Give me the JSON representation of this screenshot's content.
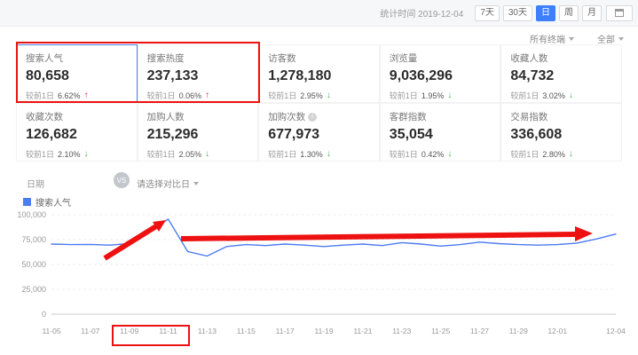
{
  "header": {
    "stat_time_label": "统计时间 2019-12-04",
    "range_buttons": [
      "7天",
      "30天",
      "日",
      "周",
      "月"
    ],
    "active_range": "日"
  },
  "filters": {
    "terminal_label": "所有终端",
    "scope_label": "全部"
  },
  "metrics": [
    {
      "label": "搜索人气",
      "value": "80,658",
      "compare_label": "较前1日",
      "change": "6.62%",
      "direction": "up",
      "selected": true,
      "has_info": false
    },
    {
      "label": "搜索热度",
      "value": "237,133",
      "compare_label": "较前1日",
      "change": "0.06%",
      "direction": "up",
      "selected": false,
      "has_info": false
    },
    {
      "label": "访客数",
      "value": "1,278,180",
      "compare_label": "较前1日",
      "change": "2.95%",
      "direction": "down",
      "selected": false,
      "has_info": false
    },
    {
      "label": "浏览量",
      "value": "9,036,296",
      "compare_label": "较前1日",
      "change": "1.95%",
      "direction": "down",
      "selected": false,
      "has_info": false
    },
    {
      "label": "收藏人数",
      "value": "84,732",
      "compare_label": "较前1日",
      "change": "3.02%",
      "direction": "down",
      "selected": false,
      "has_info": false
    },
    {
      "label": "收藏次数",
      "value": "126,682",
      "compare_label": "较前1日",
      "change": "2.10%",
      "direction": "down",
      "selected": false,
      "has_info": false
    },
    {
      "label": "加购人数",
      "value": "215,296",
      "compare_label": "较前1日",
      "change": "2.05%",
      "direction": "down",
      "selected": false,
      "has_info": false
    },
    {
      "label": "加购次数",
      "value": "677,973",
      "compare_label": "较前1日",
      "change": "1.30%",
      "direction": "down",
      "selected": false,
      "has_info": true
    },
    {
      "label": "客群指数",
      "value": "35,054",
      "compare_label": "较前1日",
      "change": "0.42%",
      "direction": "down",
      "selected": false,
      "has_info": false
    },
    {
      "label": "交易指数",
      "value": "336,608",
      "compare_label": "较前1日",
      "change": "2.80%",
      "direction": "down",
      "selected": false,
      "has_info": false
    }
  ],
  "compare_bar": {
    "date_label": "日期",
    "vs_label": "VS",
    "compare_select_label": "请选择对比日"
  },
  "legend": {
    "series_label": "搜索人气"
  },
  "colors": {
    "accent_blue": "#4b7cf3",
    "up_red": "#f5222d",
    "down_green": "#3cb34f",
    "annotation_red": "#ee1111"
  },
  "chart_data": {
    "type": "line",
    "title": "",
    "xlabel": "",
    "ylabel": "搜索人气",
    "x": [
      "11-05",
      "11-06",
      "11-07",
      "11-08",
      "11-09",
      "11-10",
      "11-11",
      "11-12",
      "11-13",
      "11-14",
      "11-15",
      "11-16",
      "11-17",
      "11-18",
      "11-19",
      "11-20",
      "11-21",
      "11-22",
      "11-23",
      "11-24",
      "11-25",
      "11-26",
      "11-27",
      "11-28",
      "11-29",
      "11-30",
      "12-01",
      "12-02",
      "12-03",
      "12-04"
    ],
    "series": [
      {
        "name": "搜索人气",
        "color": "#4b7cf3",
        "values": [
          70500,
          70000,
          70200,
          69500,
          71000,
          84000,
          95500,
          63000,
          58500,
          68000,
          70000,
          69000,
          70500,
          69500,
          68000,
          69500,
          70500,
          69000,
          72000,
          70500,
          68500,
          70000,
          72500,
          71000,
          70000,
          69500,
          70000,
          71500,
          75650,
          80658
        ]
      }
    ],
    "x_tick_labels": [
      "11-05",
      "11-07",
      "11-09",
      "11-11",
      "11-13",
      "11-15",
      "11-17",
      "11-19",
      "11-21",
      "11-23",
      "11-25",
      "11-27",
      "11-29",
      "12-01",
      "12-04"
    ],
    "ylim": [
      0,
      100000
    ],
    "y_ticks": [
      0,
      25000,
      50000,
      75000,
      100000
    ],
    "y_tick_labels": [
      "0",
      "25,000",
      "50,000",
      "75,000",
      "100,000"
    ],
    "grid": true,
    "legend_position": "top-left"
  }
}
